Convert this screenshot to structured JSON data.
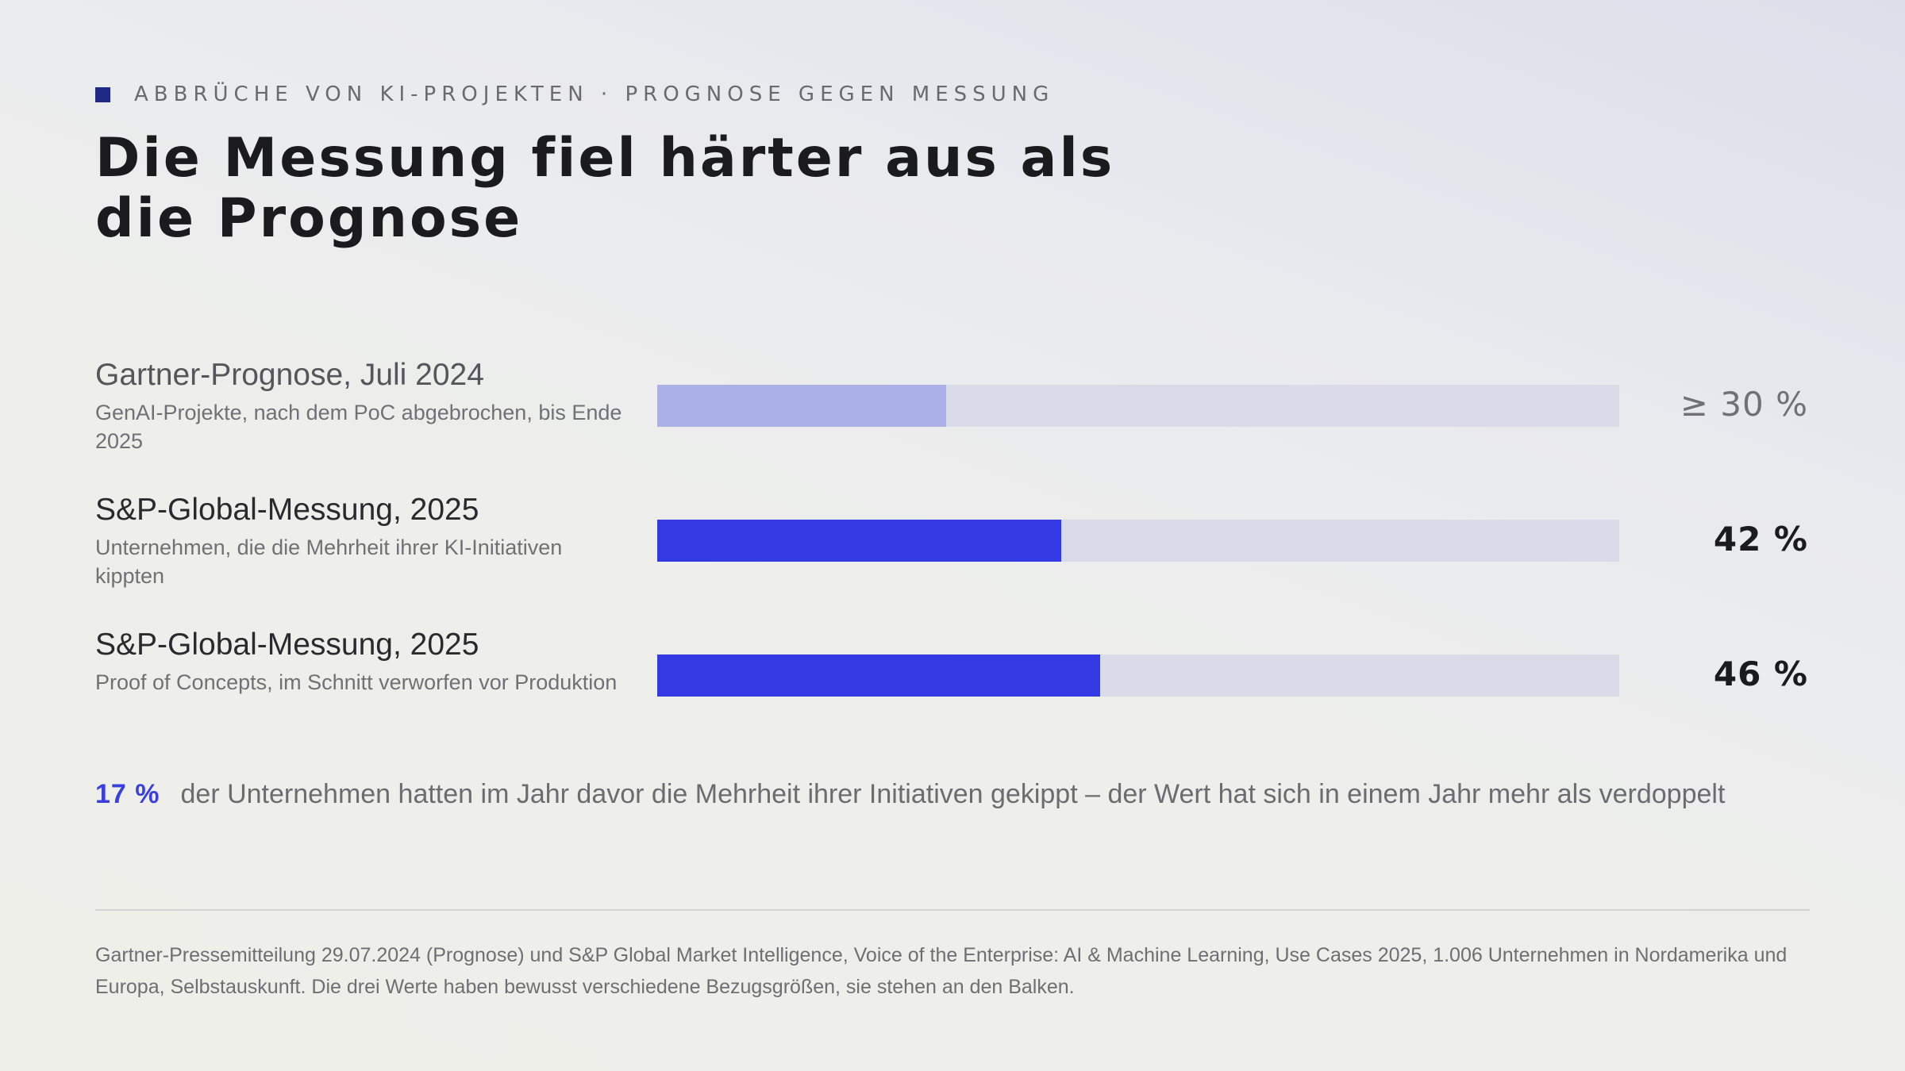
{
  "eyebrow": "ABBRÜCHE VON KI-PROJEKTEN · PROGNOSE GEGEN MESSUNG",
  "title": "Die Messung fiel härter aus als die Prognose",
  "colors": {
    "accent": "#3a3fe0",
    "eyebrow_mark": "#1e2a85",
    "forecast_fill": "#abb1e6",
    "measurement_fill": "#3339e3",
    "track": "#d9dbe8",
    "forecast_value_text": "#707075",
    "measurement_value_text": "#1b1b1e"
  },
  "chart_data": {
    "type": "bar",
    "orientation": "horizontal",
    "xlim": [
      0,
      100
    ],
    "grid": false,
    "legend": "none",
    "bars": [
      {
        "heading": "Gartner-Prognose, Juli 2024",
        "description": "GenAI-Projekte, nach dem PoC abgebrochen, bis Ende 2025",
        "value": 30,
        "value_label": "≥ 30 %",
        "kind": "forecast"
      },
      {
        "heading": "S&P-Global-Messung, 2025",
        "description": "Unternehmen, die die Mehrheit ihrer KI-Initiativen kippten",
        "value": 42,
        "value_label": "42 %",
        "kind": "measurement"
      },
      {
        "heading": "S&P-Global-Messung, 2025",
        "description": "Proof of Concepts, im Schnitt verworfen vor Produktion",
        "value": 46,
        "value_label": "46 %",
        "kind": "measurement"
      }
    ]
  },
  "note": {
    "value": "17 %",
    "text": "der Unternehmen hatten im Jahr davor die Mehrheit ihrer Initiativen gekippt – der Wert hat sich in einem Jahr mehr als verdoppelt"
  },
  "source": "Gartner-Pressemitteilung 29.07.2024 (Prognose) und S&P Global Market Intelligence, Voice of the Enterprise: AI & Machine Learning, Use Cases 2025, 1.006 Unternehmen in Nordamerika und Europa, Selbstauskunft. Die drei Werte haben bewusst verschiedene Bezugsgrößen, sie stehen an den Balken."
}
